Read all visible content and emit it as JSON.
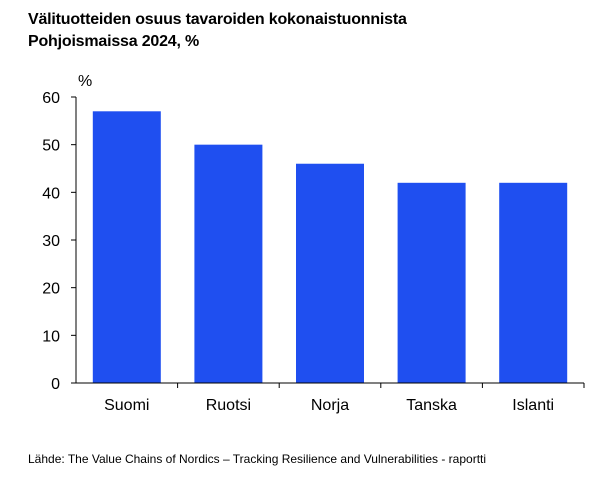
{
  "title_line1": "Välituotteiden osuus tavaroiden kokonaistuonnista",
  "title_line2": "Pohjoismaissa 2024, %",
  "source": "Lähde: The Value Chains of Nordics – Tracking Resilience and Vulnerabilities - raportti",
  "colors": {
    "bar": "#1f4ff0",
    "axis": "#000000"
  },
  "chart_data": {
    "type": "bar",
    "categories": [
      "Suomi",
      "Ruotsi",
      "Norja",
      "Tanska",
      "Islanti"
    ],
    "values": [
      57,
      50,
      46,
      42,
      42
    ],
    "title": "Välituotteiden osuus tavaroiden kokonaistuonnista Pohjoismaissa 2024, %",
    "ylabel": "%",
    "ylim": [
      0,
      60
    ],
    "yticks": [
      0,
      10,
      20,
      30,
      40,
      50,
      60
    ],
    "grid": false,
    "legend": "none"
  }
}
